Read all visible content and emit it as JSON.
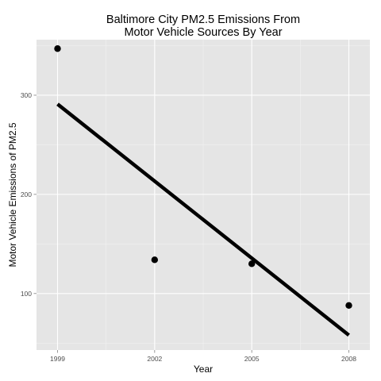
{
  "chart_data": {
    "type": "scatter",
    "title": "Baltimore City PM2.5 Emissions From\nMotor Vehicle Sources By Year",
    "xlabel": "Year",
    "ylabel": "Motor Vehicle Emissions of PM2.5",
    "xlim": [
      1998.35,
      2008.65
    ],
    "ylim": [
      43,
      356
    ],
    "xticks": [
      1999,
      2002,
      2005,
      2008
    ],
    "yticks": [
      100,
      200,
      300
    ],
    "grid": true,
    "legend": "none",
    "series": [
      {
        "kind": "points",
        "x": [
          1999,
          2002,
          2005,
          2008
        ],
        "y": [
          347,
          134,
          130,
          88
        ]
      },
      {
        "kind": "linear-fit",
        "x": [
          1999,
          2008
        ],
        "y": [
          291,
          58
        ]
      }
    ],
    "colors": {
      "panel_background": "#e5e5e5",
      "grid_major": "#ffffff",
      "grid_minor": "#f2f2f2",
      "points": "#000000",
      "fit_line": "#000000",
      "tick_label": "#4d4d4d"
    }
  }
}
